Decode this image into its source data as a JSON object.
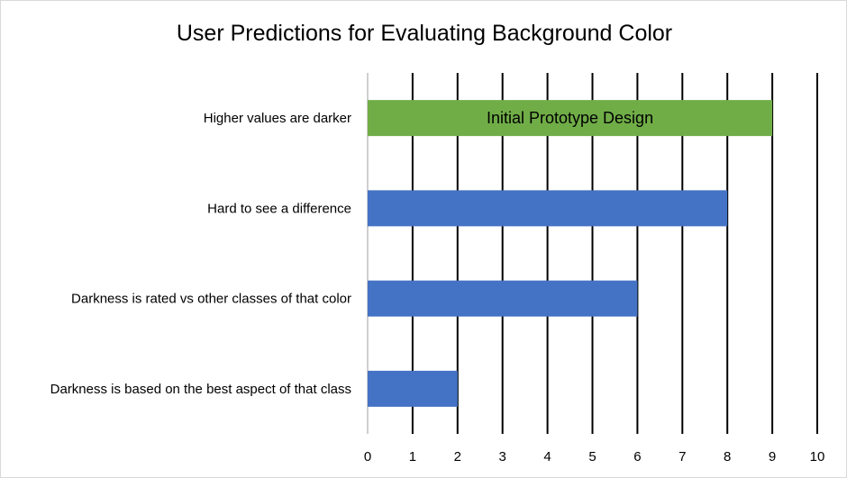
{
  "chart_data": {
    "type": "bar",
    "orientation": "horizontal",
    "title": "User Predictions for Evaluating Background Color",
    "xlabel": "",
    "ylabel": "",
    "xlim": [
      0,
      10
    ],
    "xticks": [
      "0",
      "1",
      "2",
      "3",
      "4",
      "5",
      "6",
      "7",
      "8",
      "9",
      "10"
    ],
    "grid": true,
    "legend": "none",
    "categories": [
      "Higher values are darker",
      "Hard to see a difference",
      "Darkness is rated vs other classes of that color",
      "Darkness is based on the best aspect of that class"
    ],
    "values": [
      9,
      8,
      6,
      2
    ],
    "bar_colors": [
      "#70ad47",
      "#4472c4",
      "#4472c4",
      "#4472c4"
    ],
    "annotation": {
      "text": "Initial Prototype Design",
      "category_index": 0
    }
  }
}
